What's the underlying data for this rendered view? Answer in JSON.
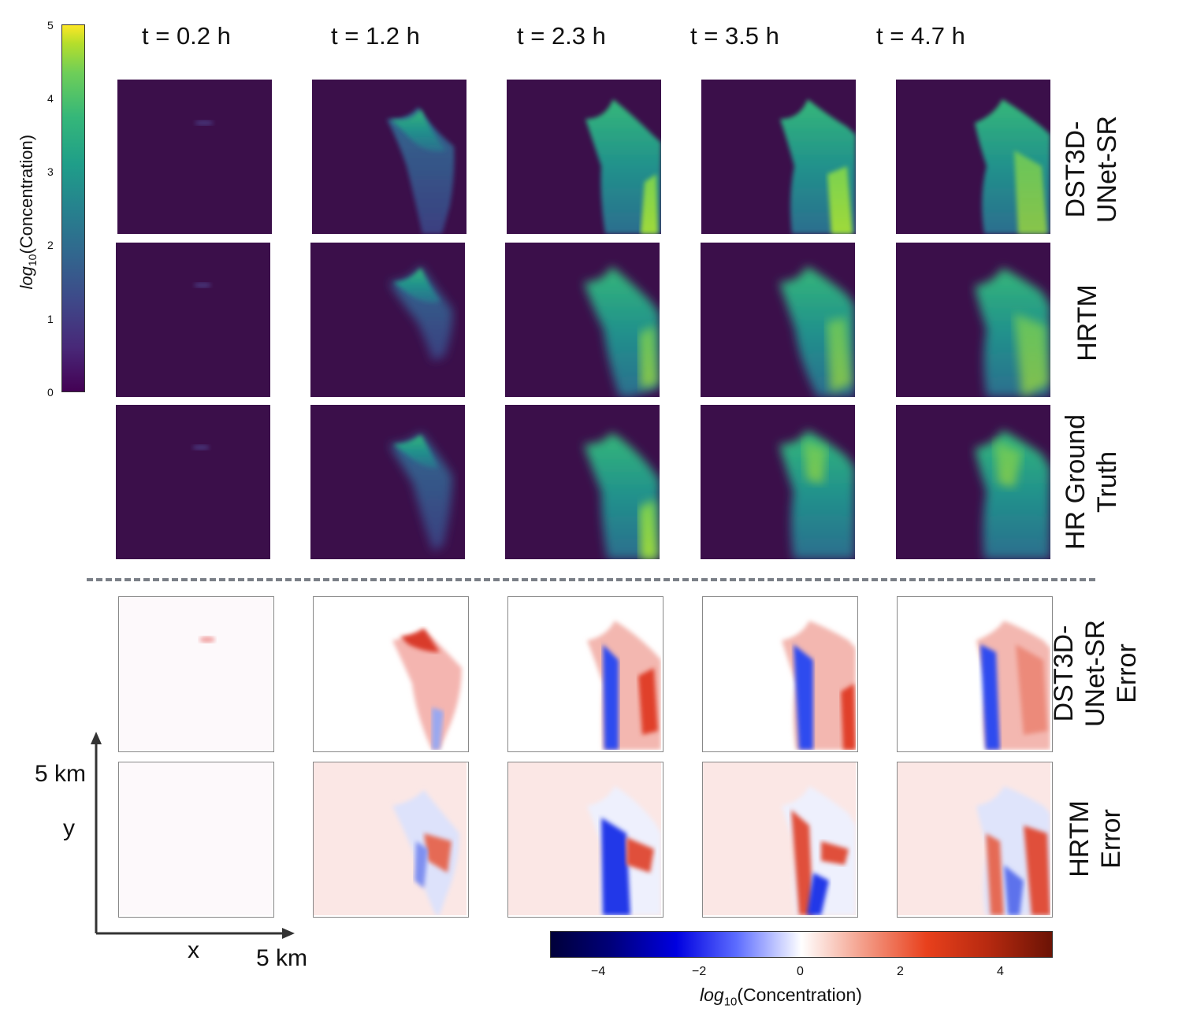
{
  "figure": {
    "time_labels": [
      "t = 0.2 h",
      "t = 1.2 h",
      "t = 2.3 h",
      "t = 3.5 h",
      "t = 4.7 h"
    ],
    "row_labels": {
      "dst3d": [
        "DST3D-",
        "UNet-SR"
      ],
      "hrtm": [
        "HRTM"
      ],
      "ground_truth": [
        "HR Ground",
        "Truth"
      ],
      "dst3d_error": [
        "DST3D-",
        "UNet-SR",
        "Error"
      ],
      "hrtm_error": [
        "HRTM",
        "Error"
      ]
    },
    "top_colorbar": {
      "label_prefix": "log",
      "label_subscript": "10",
      "label_suffix": "(Concentration)",
      "ticks": [
        "0",
        "1",
        "2",
        "3",
        "4",
        "5"
      ],
      "colormap": [
        "#440154",
        "#3b528b",
        "#21918c",
        "#5ec962",
        "#fde725"
      ]
    },
    "bottom_colorbar": {
      "label_prefix": "log",
      "label_subscript": "10",
      "label_suffix": "(Concentration)",
      "ticks": [
        "−4",
        "−2",
        "0",
        "2",
        "4"
      ],
      "colormap": [
        "#00003a",
        "#1010ff",
        "#ffffff",
        "#e8401c",
        "#6b1305"
      ]
    },
    "axes": {
      "x_label": "x",
      "y_label": "y",
      "x_extent": "5 km",
      "y_extent": "5 km"
    },
    "colors": {
      "background_dark": "#3b0f4a",
      "error_bg_light": "#fdf9fb",
      "error_bg_pink": "#fbe7e5",
      "divider": "#7a7f87"
    }
  }
}
